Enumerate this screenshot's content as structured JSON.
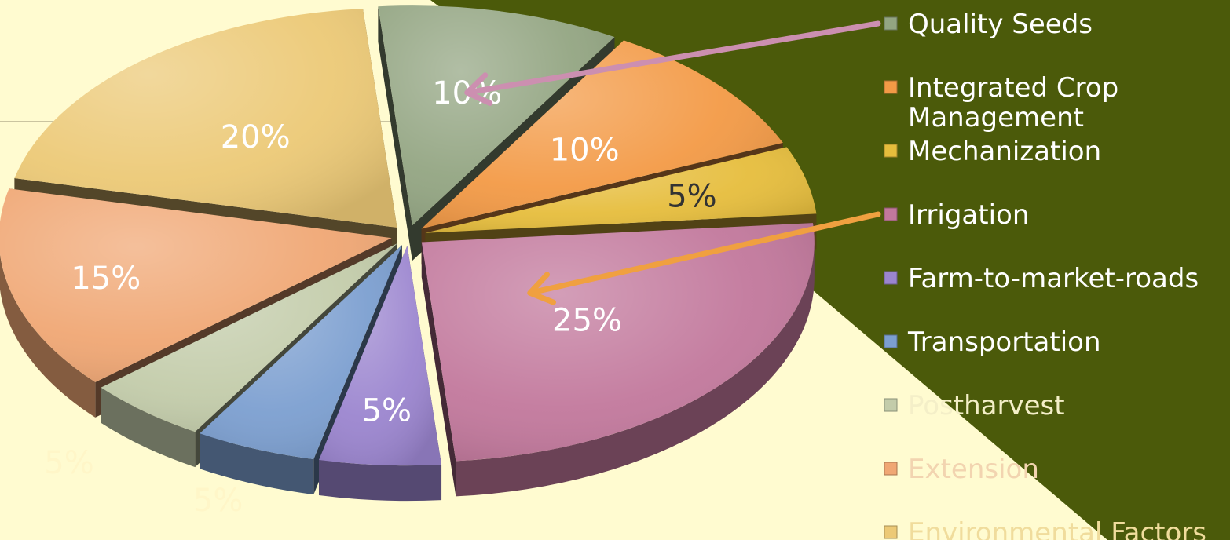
{
  "theme": {
    "background": "#fffbd0",
    "panel": "#4b5a0a",
    "arrow_seeds": "#cc8fb0",
    "arrow_irrigation": "#f0a040"
  },
  "chart_data": {
    "type": "pie",
    "style": "3d-exploded",
    "title": "",
    "legend_position": "right",
    "categories": [
      "Quality Seeds",
      "Integrated Crop Management",
      "Mechanization",
      "Irrigation",
      "Farm-to-market-roads",
      "Transportation",
      "Postharvest",
      "Extension",
      "Environmental Factors"
    ],
    "values": [
      10,
      10,
      5,
      25,
      5,
      5,
      5,
      15,
      20
    ],
    "labels": [
      "10%",
      "10%",
      "5%",
      "25%",
      "5%",
      "5%",
      "5%",
      "15%",
      "20%"
    ],
    "colors": [
      "#93a582",
      "#f39a46",
      "#e6bd3c",
      "#c2789c",
      "#9b85cf",
      "#7c9fd0",
      "#c3ccaa",
      "#f0a774",
      "#ecc976"
    ],
    "annotations": [
      {
        "type": "arrow",
        "from_legend": "Quality Seeds",
        "to_slice": "Quality Seeds"
      },
      {
        "type": "arrow",
        "from_legend": "Irrigation",
        "to_slice": "Irrigation"
      }
    ]
  }
}
